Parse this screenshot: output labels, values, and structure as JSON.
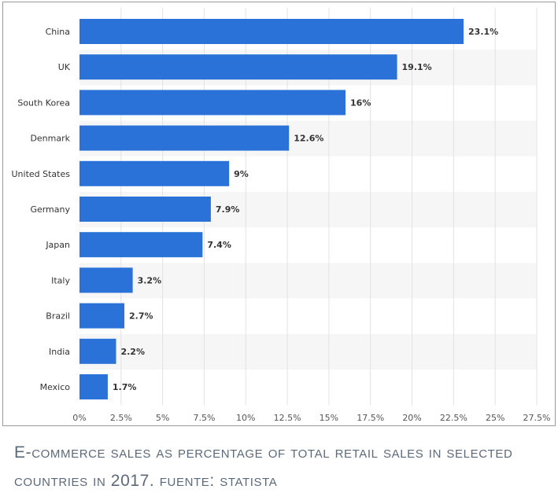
{
  "chart_data": {
    "type": "bar",
    "orientation": "horizontal",
    "categories": [
      "China",
      "UK",
      "South Korea",
      "Denmark",
      "United States",
      "Germany",
      "Japan",
      "Italy",
      "Brazil",
      "India",
      "Mexico"
    ],
    "values": [
      23.1,
      19.1,
      16,
      12.6,
      9,
      7.9,
      7.4,
      3.2,
      2.7,
      2.2,
      1.7
    ],
    "value_labels": [
      "23.1%",
      "19.1%",
      "16%",
      "12.6%",
      "9%",
      "7.9%",
      "7.4%",
      "3.2%",
      "2.7%",
      "2.2%",
      "1.7%"
    ],
    "x_ticks": [
      "0%",
      "2.5%",
      "5%",
      "7.5%",
      "10%",
      "12.5%",
      "15%",
      "17.5%",
      "20%",
      "22.5%",
      "25%",
      "27.5%"
    ],
    "xlim": [
      0,
      27.5
    ],
    "grid": true,
    "colors": {
      "bar": "#2a71d8",
      "stripe": "#f6f6f6",
      "grid": "#e2e2e2"
    }
  },
  "caption": "E-commerce sales as percentage of total retail sales in selected countries in 2017. fuente: statista"
}
